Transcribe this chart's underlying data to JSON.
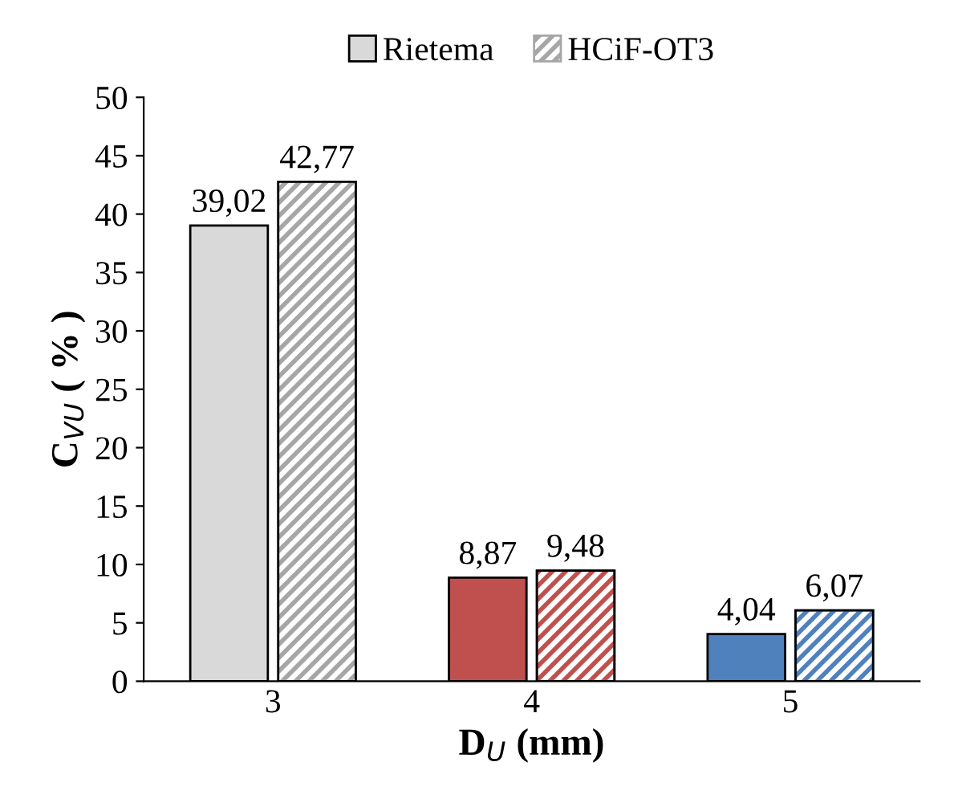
{
  "chart_data": {
    "type": "bar",
    "xlabel": "D$_{U}$ (mm)",
    "ylabel": "C$_{VU}$ ( % )",
    "categories": [
      "3",
      "4",
      "5"
    ],
    "series": [
      {
        "name": "Rietema",
        "color": "#d9d9d9",
        "colors": [
          "#d9d9d9",
          "#c0504d",
          "#4f81bd"
        ],
        "values": [
          39.02,
          8.87,
          4.04
        ],
        "value_labels": [
          "39,02",
          "8,87",
          "4,04"
        ]
      },
      {
        "name": "HCiF-OT3",
        "color": "#a6a6a6",
        "colors": [
          "#a6a6a6",
          "#c0504d",
          "#4f81bd"
        ],
        "values": [
          42.77,
          9.48,
          6.07
        ],
        "value_labels": [
          "42,77",
          "9,48",
          "6,07"
        ]
      }
    ],
    "ylim": [
      0,
      50
    ],
    "yticks": [
      0,
      5,
      10,
      15,
      20,
      25,
      30,
      35,
      40,
      45,
      50
    ],
    "grid": false,
    "legend": "top"
  }
}
